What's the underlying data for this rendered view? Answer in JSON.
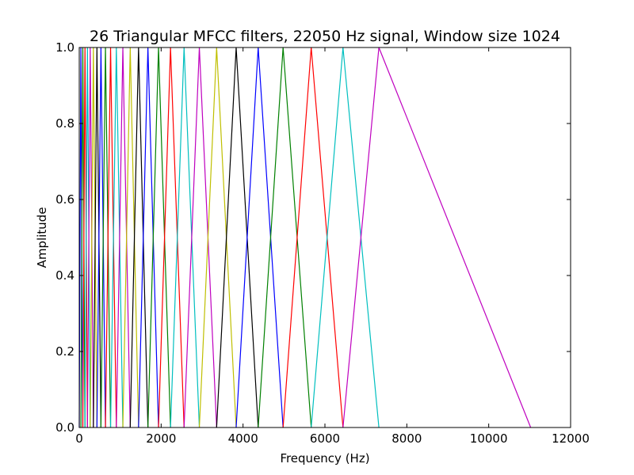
{
  "chart_data": {
    "type": "line",
    "title": "26 Triangular MFCC filters, 22050 Hz signal, Window size 1024",
    "xlabel": "Frequency (Hz)",
    "ylabel": "Amplitude",
    "xlim": [
      0,
      12000
    ],
    "ylim": [
      0.0,
      1.0
    ],
    "xticks": [
      "0",
      "2000",
      "4000",
      "6000",
      "8000",
      "10000",
      "12000"
    ],
    "yticks": [
      "0.0",
      "0.2",
      "0.4",
      "0.6",
      "0.8",
      "1.0"
    ],
    "grid": false,
    "legend": "none",
    "colors": [
      "#0000ff",
      "#008000",
      "#ff0000",
      "#00bfbf",
      "#bf00bf",
      "#bfbf00",
      "#000000"
    ],
    "edge_frequencies": [
      0,
      40,
      87,
      140,
      200,
      268,
      345,
      432,
      530,
      640,
      765,
      906,
      1065,
      1245,
      1448,
      1677,
      1936,
      2229,
      2560,
      2933,
      3355,
      3832,
      4370,
      4978,
      5665,
      6441,
      7318,
      11025
    ],
    "filter_peaks": [
      40,
      87,
      140,
      200,
      268,
      345,
      432,
      530,
      640,
      765,
      906,
      1065,
      1245,
      1448,
      1677,
      1936,
      2229,
      2560,
      2933,
      3355,
      3832,
      4370,
      4978,
      5665,
      6441,
      7318
    ]
  }
}
